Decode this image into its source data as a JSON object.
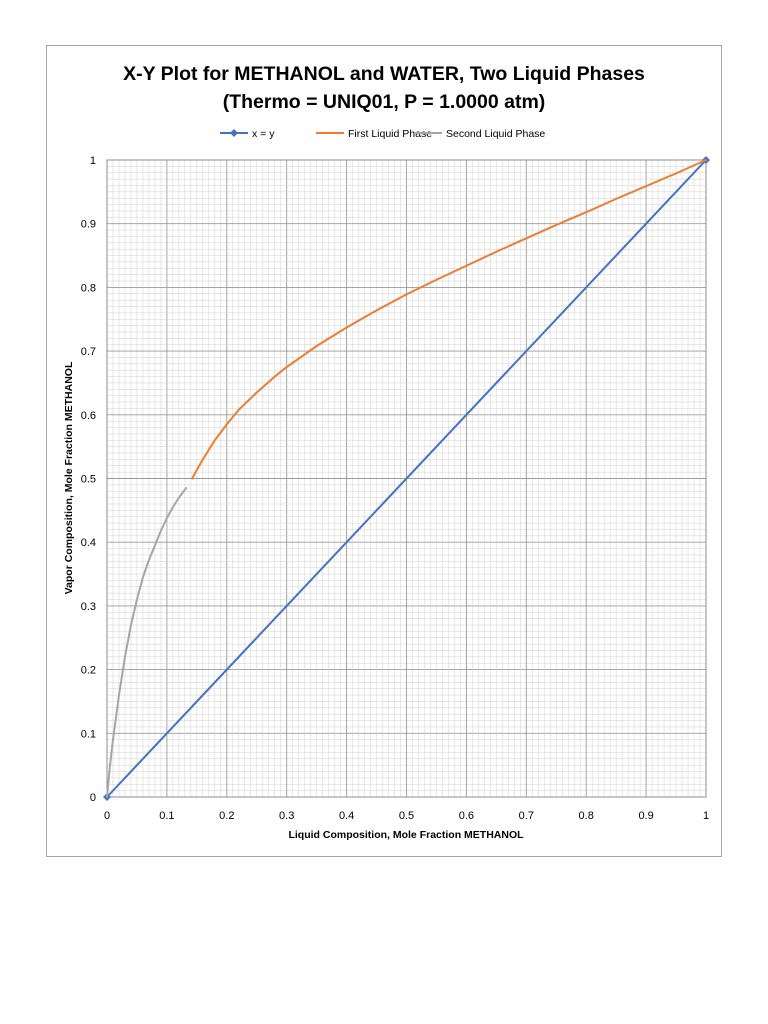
{
  "chart_data": {
    "type": "line",
    "title": "X-Y Plot for METHANOL and WATER, Two Liquid Phases",
    "subtitle": "(Thermo = UNIQ01, P = 1.0000 atm)",
    "xlabel": "Liquid Composition, Mole Fraction METHANOL",
    "ylabel": "Vapor Composition, Mole Fraction METHANOL",
    "xlim": [
      0,
      1
    ],
    "ylim": [
      0,
      1
    ],
    "x_ticks": [
      "0",
      "0.1",
      "0.2",
      "0.3",
      "0.4",
      "0.5",
      "0.6",
      "0.7",
      "0.8",
      "0.9",
      "1"
    ],
    "y_ticks": [
      "0",
      "0.1",
      "0.2",
      "0.3",
      "0.4",
      "0.5",
      "0.6",
      "0.7",
      "0.8",
      "0.9",
      "1"
    ],
    "grid": true,
    "legend_position": "top",
    "series": [
      {
        "name": "x = y",
        "color": "#4472c4",
        "marker": "diamond",
        "points": [
          [
            0,
            0
          ],
          [
            1,
            1
          ]
        ]
      },
      {
        "name": "First Liquid Phase",
        "color": "#ed7d31",
        "marker": "none",
        "points": [
          [
            0.142,
            0.5
          ],
          [
            0.16,
            0.53
          ],
          [
            0.18,
            0.56
          ],
          [
            0.2,
            0.585
          ],
          [
            0.22,
            0.608
          ],
          [
            0.25,
            0.635
          ],
          [
            0.28,
            0.66
          ],
          [
            0.3,
            0.675
          ],
          [
            0.35,
            0.708
          ],
          [
            0.4,
            0.737
          ],
          [
            0.45,
            0.764
          ],
          [
            0.5,
            0.789
          ],
          [
            0.55,
            0.812
          ],
          [
            0.6,
            0.834
          ],
          [
            0.65,
            0.856
          ],
          [
            0.7,
            0.877
          ],
          [
            0.75,
            0.898
          ],
          [
            0.8,
            0.918
          ],
          [
            0.85,
            0.939
          ],
          [
            0.9,
            0.959
          ],
          [
            0.95,
            0.979
          ],
          [
            1.0,
            1.0
          ]
        ]
      },
      {
        "name": "Second Liquid Phase",
        "color": "#a5a5a5",
        "marker": "none",
        "points": [
          [
            0,
            0
          ],
          [
            0.005,
            0.05
          ],
          [
            0.01,
            0.09
          ],
          [
            0.02,
            0.16
          ],
          [
            0.03,
            0.22
          ],
          [
            0.04,
            0.27
          ],
          [
            0.05,
            0.31
          ],
          [
            0.06,
            0.345
          ],
          [
            0.07,
            0.372
          ],
          [
            0.08,
            0.395
          ],
          [
            0.09,
            0.418
          ],
          [
            0.1,
            0.438
          ],
          [
            0.11,
            0.455
          ],
          [
            0.12,
            0.47
          ],
          [
            0.132,
            0.485
          ]
        ]
      }
    ]
  }
}
